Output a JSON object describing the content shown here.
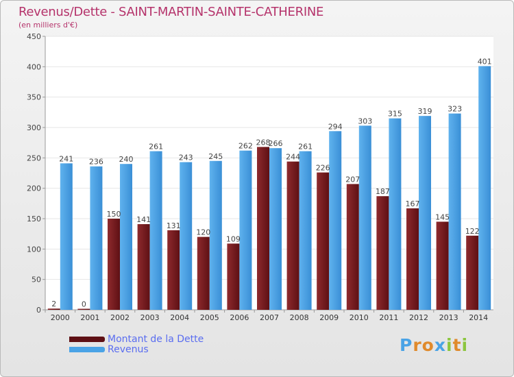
{
  "title": "Revenus/Dette - SAINT-MARTIN-SAINTE-CATHERINE",
  "subtitle": "(en milliers d'€)",
  "colors": {
    "dette": "#7a1c1f",
    "revenus": "#4aa3e6",
    "title": "#b5336b",
    "legend_text": "#5a6df0"
  },
  "logo": {
    "text": "Proxiti",
    "letters": [
      "P",
      "r",
      "o",
      "x",
      "i",
      "t",
      "i"
    ],
    "letter_colors": [
      "#4aa3e6",
      "#e08a2c",
      "#e08a2c",
      "#4aa3e6",
      "#8cc63f",
      "#e08a2c",
      "#8cc63f"
    ]
  },
  "chart_data": {
    "type": "bar",
    "categories": [
      "2000",
      "2001",
      "2002",
      "2003",
      "2004",
      "2005",
      "2006",
      "2007",
      "2008",
      "2009",
      "2010",
      "2011",
      "2012",
      "2013",
      "2014"
    ],
    "series": [
      {
        "name": "Montant de la Dette",
        "color": "#7a1c1f",
        "values": [
          2,
          0,
          150,
          141,
          131,
          120,
          109,
          268,
          244,
          226,
          207,
          187,
          167,
          145,
          122
        ]
      },
      {
        "name": "Revenus",
        "color": "#4aa3e6",
        "values": [
          241,
          236,
          240,
          261,
          243,
          245,
          262,
          266,
          261,
          294,
          303,
          315,
          319,
          323,
          401
        ]
      }
    ],
    "ylim": [
      0,
      450
    ],
    "yticks": [
      0,
      50,
      100,
      150,
      200,
      250,
      300,
      350,
      400,
      450
    ],
    "grid": true,
    "legend_position": "bottom-left"
  }
}
